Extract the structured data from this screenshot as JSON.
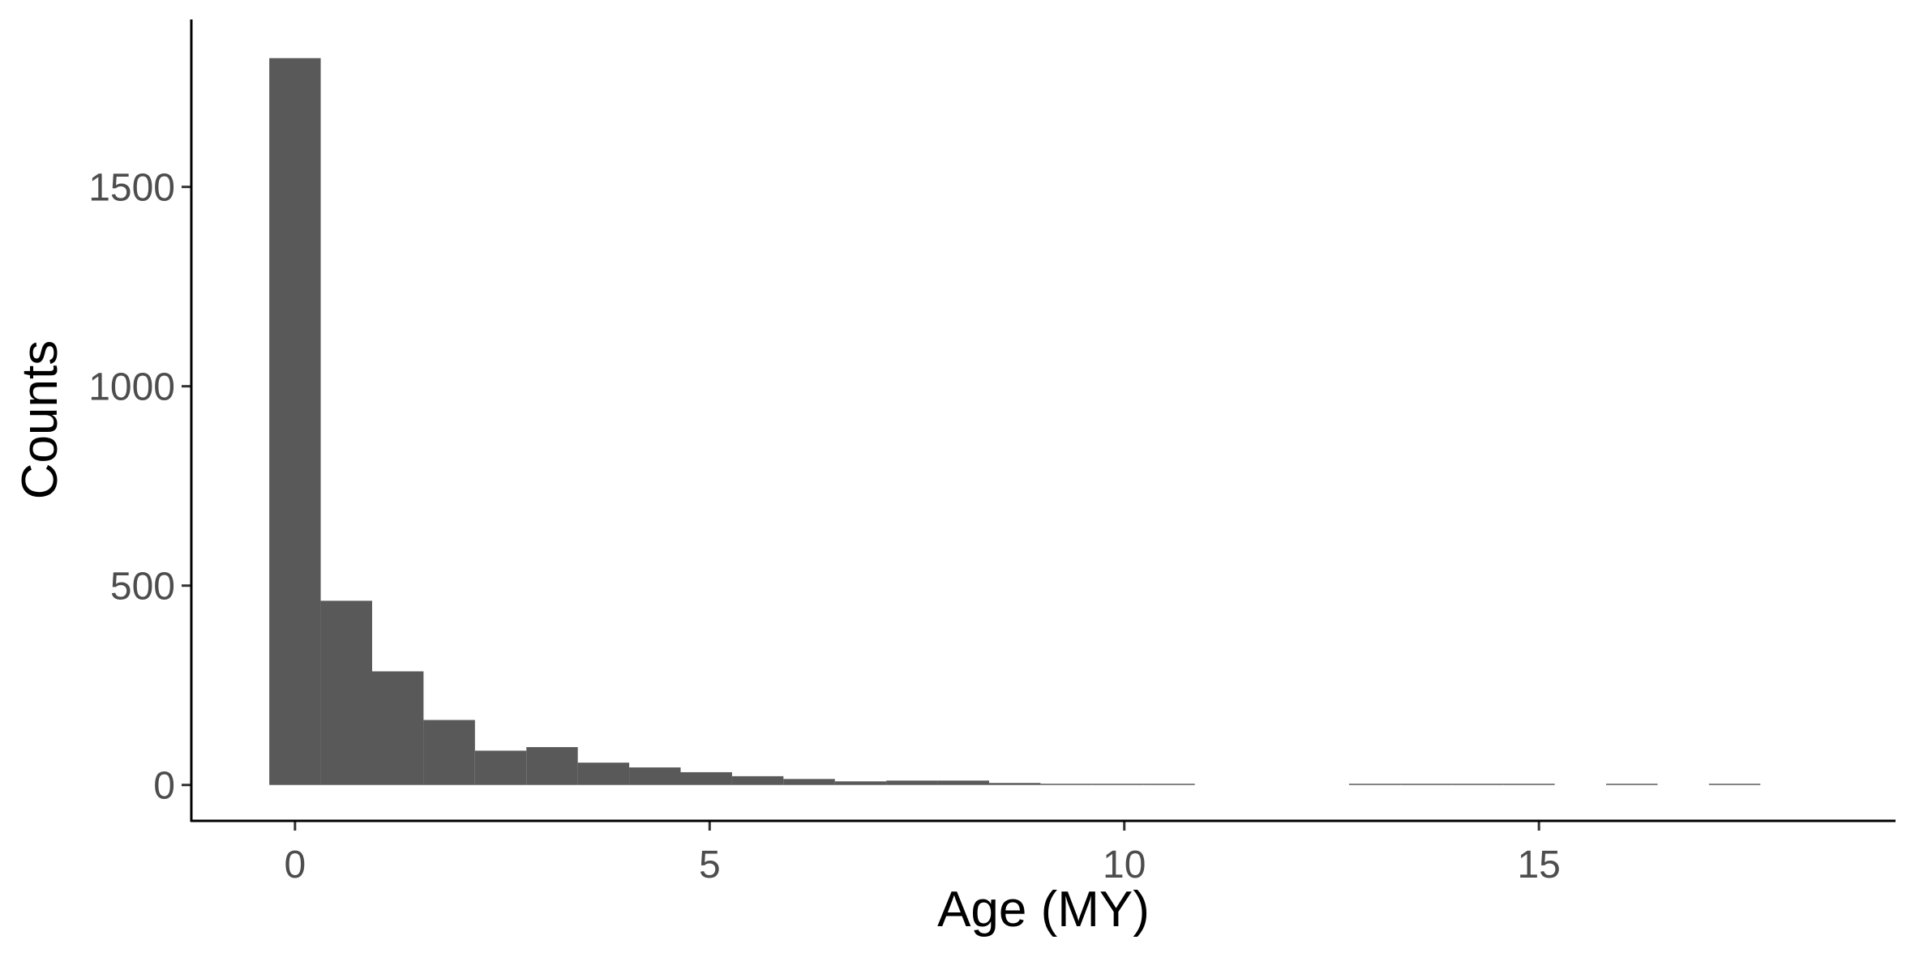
{
  "chart_data": {
    "type": "bar",
    "subtype": "histogram",
    "xlabel": "Age (MY)",
    "ylabel": "Counts",
    "xlim": [
      -1.25,
      19.3
    ],
    "ylim": [
      -90,
      1920
    ],
    "x_ticks": [
      0,
      5,
      10,
      15
    ],
    "y_ticks": [
      0,
      500,
      1000,
      1500
    ],
    "grid": false,
    "bar_color": "#595959",
    "bin_width": 0.62,
    "bins": [
      {
        "x0": -0.31,
        "x1": 0.31,
        "count": 1823
      },
      {
        "x0": 0.31,
        "x1": 0.93,
        "count": 462
      },
      {
        "x0": 0.93,
        "x1": 1.55,
        "count": 285
      },
      {
        "x0": 1.55,
        "x1": 2.17,
        "count": 163
      },
      {
        "x0": 2.17,
        "x1": 2.79,
        "count": 86
      },
      {
        "x0": 2.79,
        "x1": 3.41,
        "count": 95
      },
      {
        "x0": 3.41,
        "x1": 4.03,
        "count": 56
      },
      {
        "x0": 4.03,
        "x1": 4.65,
        "count": 44
      },
      {
        "x0": 4.65,
        "x1": 5.27,
        "count": 32
      },
      {
        "x0": 5.27,
        "x1": 5.89,
        "count": 22
      },
      {
        "x0": 5.89,
        "x1": 6.51,
        "count": 15
      },
      {
        "x0": 6.51,
        "x1": 7.13,
        "count": 9
      },
      {
        "x0": 7.13,
        "x1": 7.75,
        "count": 11
      },
      {
        "x0": 7.75,
        "x1": 8.37,
        "count": 11
      },
      {
        "x0": 8.37,
        "x1": 8.99,
        "count": 5
      },
      {
        "x0": 8.99,
        "x1": 9.61,
        "count": 3
      },
      {
        "x0": 9.61,
        "x1": 10.23,
        "count": 2
      },
      {
        "x0": 10.23,
        "x1": 10.85,
        "count": 2
      },
      {
        "x0": 12.71,
        "x1": 13.33,
        "count": 3
      },
      {
        "x0": 13.33,
        "x1": 13.95,
        "count": 3
      },
      {
        "x0": 13.95,
        "x1": 14.57,
        "count": 2
      },
      {
        "x0": 14.57,
        "x1": 15.19,
        "count": 2
      },
      {
        "x0": 15.81,
        "x1": 16.43,
        "count": 1
      },
      {
        "x0": 17.05,
        "x1": 17.67,
        "count": 1
      }
    ]
  }
}
